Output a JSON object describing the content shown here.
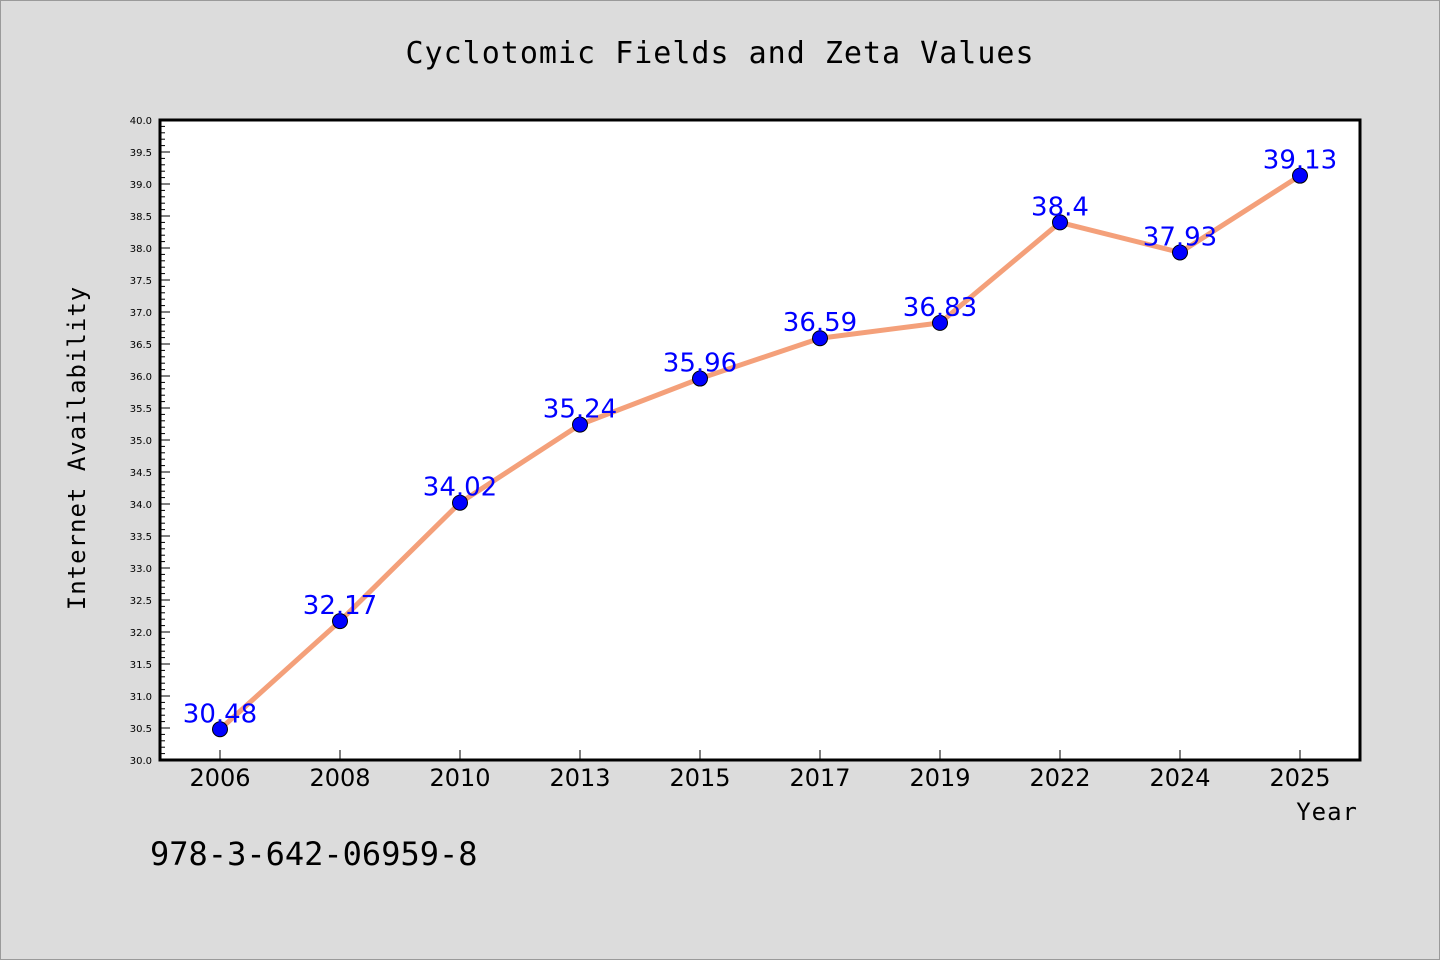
{
  "chart_data": {
    "type": "line",
    "title": "Cyclotomic Fields and Zeta Values",
    "xlabel": "Year",
    "ylabel": "Internet Availability",
    "categories": [
      "2006",
      "2008",
      "2010",
      "2013",
      "2015",
      "2017",
      "2019",
      "2022",
      "2024",
      "2025"
    ],
    "series": [
      {
        "values": [
          30.48,
          32.17,
          34.02,
          35.24,
          35.96,
          36.59,
          36.83,
          38.4,
          37.93,
          39.13
        ],
        "labels": [
          "30.48",
          "32.17",
          "34.02",
          "35.24",
          "35.96",
          "36.59",
          "36.83",
          "38.4",
          "37.93",
          "39.13"
        ],
        "line_color": "#f4a07a",
        "marker_color": "#0000ff"
      }
    ],
    "ylim": [
      30.0,
      40.0
    ],
    "ytick_step": 0.5,
    "yticks": [
      "30.0",
      "30.5",
      "31.0",
      "31.5",
      "32.0",
      "32.5",
      "33.0",
      "33.5",
      "34.0",
      "34.5",
      "35.0",
      "35.5",
      "36.0",
      "36.5",
      "37.0",
      "37.5",
      "38.0",
      "38.5",
      "39.0",
      "39.5",
      "40.0"
    ],
    "grid": false,
    "legend": "none"
  },
  "footer_code": "978-3-642-06959-8",
  "colors": {
    "background": "#dcdcdc",
    "plot_background": "#ffffff",
    "line": "#f4a07a",
    "marker": "#0000ff",
    "data_label": "#0000ff"
  }
}
